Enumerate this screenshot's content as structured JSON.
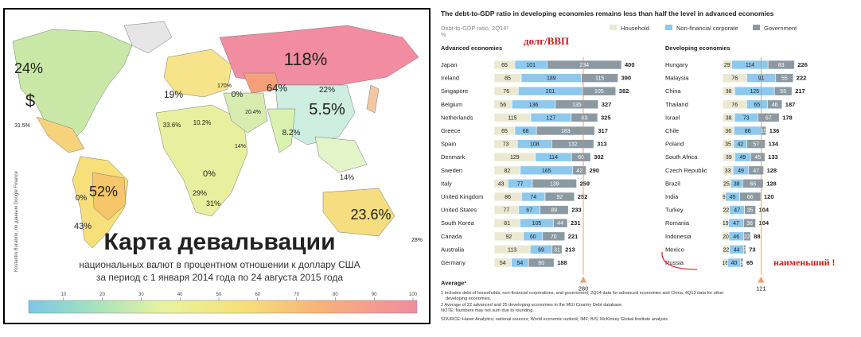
{
  "map": {
    "title": "Карта девальвации",
    "subtitle_line1": "национальных валют в процентном отношении к доллару США",
    "subtitle_line2": "за период с 1 января 2014 года по 24 августа 2015 года",
    "credit": "Kostantin Burabrin, по данным Google Finance",
    "legend_ticks": [
      "10",
      "20",
      "30",
      "40",
      "50",
      "60",
      "70",
      "80",
      "90",
      "100"
    ],
    "colors": {
      "ocean": "#ffffff",
      "low": "#7ec6e8",
      "high": "#f08ca0",
      "mid": "#f7e07a"
    }
  },
  "chart_data": [
    {
      "type": "map",
      "title": "Карта девальвации",
      "unit": "%",
      "labels": [
        {
          "region": "Russia",
          "value": "118%"
        },
        {
          "region": "Canada",
          "value": "24%"
        },
        {
          "region": "USA",
          "value": "$"
        },
        {
          "region": "Brazil",
          "value": "52%"
        },
        {
          "region": "Argentina",
          "value": "43%"
        },
        {
          "region": "Australia",
          "value": "23.6%"
        },
        {
          "region": "Ukraine",
          "value": "64%"
        },
        {
          "region": "Kazakhstan",
          "value": "22%"
        },
        {
          "region": "China",
          "value": "5.5%"
        },
        {
          "region": "India",
          "value": "8.2%"
        },
        {
          "region": "Europe",
          "value": "19%"
        },
        {
          "region": "Indonesia",
          "value": "14%"
        },
        {
          "region": "Saudi Arabia",
          "value": "0%"
        },
        {
          "region": "North Africa",
          "value": "33.6%"
        },
        {
          "region": "North Africa",
          "value": "10.2%"
        },
        {
          "region": "Peru",
          "value": "0%"
        },
        {
          "region": "Central Africa",
          "value": "0%"
        },
        {
          "region": "Southern Africa",
          "value": "29%"
        },
        {
          "region": "Southern Africa",
          "value": "31%"
        },
        {
          "region": "Mexico",
          "value": "31.5%"
        },
        {
          "region": "Iran",
          "value": "20.4%"
        },
        {
          "region": "Iran",
          "value": "14%"
        },
        {
          "region": "Pacific",
          "value": "28%"
        },
        {
          "region": "Mongolia",
          "value": "170%"
        }
      ]
    },
    {
      "type": "bar",
      "stacked": true,
      "orientation": "horizontal",
      "title": "The debt-to-GDP ratio in developing economies remains less than half the level in advanced economies",
      "subtitle": "Debt-to-GDP ratio, 2Q14¹",
      "unit": "%",
      "annotation": "долг/ВВП",
      "legend": {
        "position": "top-right",
        "items": [
          "Household",
          "Non-financial corporate",
          "Government"
        ]
      },
      "colors": {
        "Household": "#ece9d2",
        "Non-financial corporate": "#8dc9ee",
        "Government": "#8b9aa2"
      },
      "groups": [
        {
          "name": "Advanced economies",
          "categories": [
            "Japan",
            "Ireland",
            "Singapore",
            "Belgium",
            "Netherlands",
            "Greece",
            "Spain",
            "Denmark",
            "Sweden",
            "Italy",
            "United Kingdom",
            "United States",
            "South Korea",
            "Canada",
            "Australia",
            "Germany"
          ],
          "series": [
            {
              "name": "Household",
              "values": [
                65,
                85,
                76,
                56,
                115,
                65,
                73,
                129,
                82,
                43,
                86,
                77,
                81,
                92,
                113,
                54
              ]
            },
            {
              "name": "Non-financial corporate",
              "values": [
                101,
                189,
                201,
                136,
                127,
                68,
                108,
                114,
                165,
                77,
                74,
                67,
                105,
                60,
                69,
                54
              ]
            },
            {
              "name": "Government",
              "values": [
                234,
                115,
                105,
                135,
                83,
                183,
                132,
                60,
                42,
                139,
                92,
                89,
                44,
                70,
                31,
                80
              ]
            }
          ],
          "totals": [
            400,
            390,
            382,
            327,
            325,
            317,
            313,
            302,
            290,
            259,
            252,
            233,
            231,
            221,
            213,
            188
          ],
          "average": 280
        },
        {
          "name": "Developing economies",
          "categories": [
            "Hungary",
            "Malaysia",
            "China",
            "Thailand",
            "Israel",
            "Chile",
            "Poland",
            "South Africa",
            "Czech Republic",
            "Brazil",
            "India",
            "Turkey",
            "Romania",
            "Indonesia",
            "Mexico",
            "Russia"
          ],
          "series": [
            {
              "name": "Household",
              "values": [
                29,
                76,
                38,
                76,
                38,
                36,
                35,
                39,
                33,
                25,
                9,
                22,
                19,
                20,
                22,
                16
              ]
            },
            {
              "name": "Non-financial corporate",
              "values": [
                114,
                91,
                125,
                65,
                73,
                86,
                42,
                49,
                49,
                38,
                45,
                47,
                47,
                46,
                44,
                40
              ]
            },
            {
              "name": "Government",
              "values": [
                83,
                55,
                55,
                46,
                67,
                15,
                57,
                45,
                47,
                65,
                66,
                35,
                38,
                22,
                7,
                9
              ]
            }
          ],
          "totals": [
            226,
            222,
            217,
            187,
            178,
            136,
            134,
            133,
            128,
            128,
            120,
            104,
            104,
            88,
            73,
            65
          ],
          "average": 121,
          "highlight": {
            "category": "Russia",
            "text": "наименьший !"
          }
        }
      ],
      "average_label": "Average²",
      "footnotes": [
        "1  Includes debt of households, non-financial corporations, and government; 2Q14 data for advanced economies and China, 4Q13 data for other developing economies.",
        "2  Average of 22 advanced and 25 developing economies in the MGI Country Debt database.",
        "NOTE: Numbers may not sum due to rounding.",
        "SOURCE:  Haver Analytics; national sources; World economic outlook, IMF; BIS; McKinsey Global Institute analysis"
      ]
    }
  ]
}
